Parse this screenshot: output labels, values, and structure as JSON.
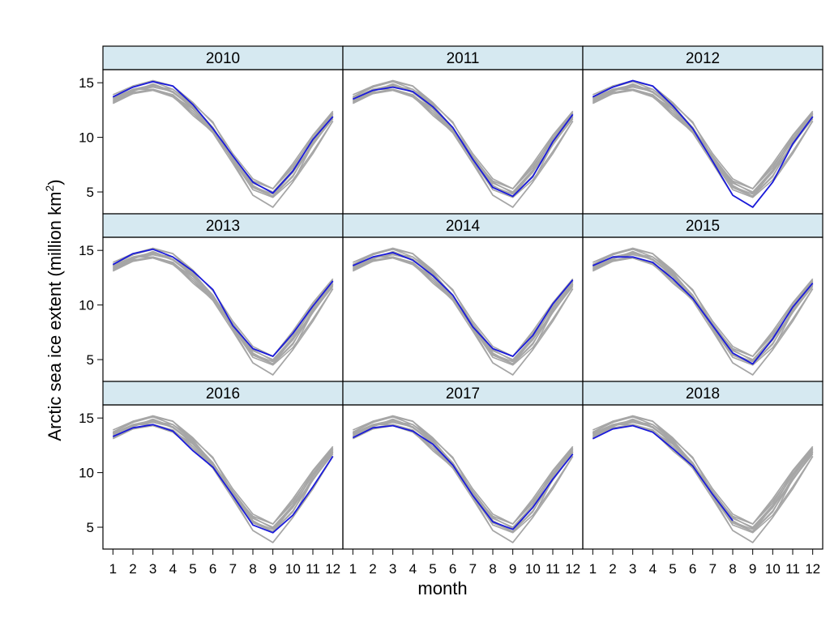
{
  "chart_data": {
    "type": "line",
    "layout": "3x3 facet grid",
    "xlabel": "month",
    "ylabel_text": "Arctic sea ice extent (million km",
    "ylabel_superscript": "2",
    "ylabel_close": ")",
    "ylim": [
      3,
      16.2
    ],
    "xlim": [
      0.5,
      12.5
    ],
    "y_ticks": [
      "15",
      "10",
      "5"
    ],
    "y_tick_values": [
      15,
      10,
      5
    ],
    "x_ticks": [
      "1",
      "2",
      "3",
      "4",
      "5",
      "6",
      "7",
      "8",
      "9",
      "10",
      "11",
      "12"
    ],
    "x": [
      1,
      2,
      3,
      4,
      5,
      6,
      7,
      8,
      9,
      10,
      11,
      12
    ],
    "grid": false,
    "colors": {
      "highlight": "#1a1adb",
      "background_series": "#a6a6a6",
      "strip_fill": "#d6e9f1",
      "frame": "#000000"
    },
    "series": [
      {
        "year": "2010",
        "values": [
          13.7,
          14.6,
          15.1,
          14.7,
          13.0,
          10.8,
          8.3,
          5.9,
          4.9,
          6.9,
          9.8,
          11.9
        ]
      },
      {
        "year": "2011",
        "values": [
          13.5,
          14.3,
          14.6,
          14.2,
          12.8,
          10.9,
          8.0,
          5.4,
          4.6,
          6.4,
          9.6,
          12.1
        ]
      },
      {
        "year": "2012",
        "values": [
          13.7,
          14.6,
          15.2,
          14.7,
          12.9,
          10.8,
          7.8,
          4.7,
          3.6,
          5.9,
          9.4,
          11.9
        ]
      },
      {
        "year": "2013",
        "values": [
          13.7,
          14.7,
          15.1,
          14.4,
          13.1,
          11.4,
          8.1,
          6.0,
          5.3,
          7.4,
          9.9,
          12.2
        ]
      },
      {
        "year": "2014",
        "values": [
          13.6,
          14.4,
          14.8,
          14.1,
          12.7,
          10.9,
          8.0,
          6.0,
          5.3,
          7.2,
          10.1,
          12.3
        ]
      },
      {
        "year": "2015",
        "values": [
          13.6,
          14.4,
          14.4,
          13.9,
          12.4,
          10.6,
          8.1,
          5.6,
          4.6,
          6.9,
          9.8,
          12.0
        ]
      },
      {
        "year": "2016",
        "values": [
          13.3,
          14.1,
          14.4,
          13.8,
          12.0,
          10.5,
          7.9,
          5.2,
          4.5,
          6.1,
          8.7,
          11.5
        ]
      },
      {
        "year": "2017",
        "values": [
          13.2,
          14.1,
          14.3,
          13.8,
          12.6,
          10.7,
          7.9,
          5.5,
          4.8,
          6.8,
          9.4,
          11.7
        ]
      },
      {
        "year": "2018",
        "values": [
          13.1,
          14.0,
          14.3,
          13.7,
          12.2,
          10.6,
          8.0,
          5.6,
          null,
          null,
          null,
          null
        ]
      }
    ],
    "reference_series": [
      [
        13.2,
        14.0,
        14.4,
        13.9,
        12.2,
        10.4,
        7.6,
        4.7,
        3.6,
        5.9,
        8.5,
        11.5
      ],
      [
        13.9,
        14.7,
        15.2,
        14.7,
        13.2,
        11.3,
        8.5,
        6.2,
        5.3,
        7.6,
        10.2,
        12.4
      ],
      [
        13.5,
        14.4,
        14.7,
        14.4,
        12.9,
        10.9,
        8.1,
        5.8,
        5.0,
        7.0,
        9.8,
        12.1
      ],
      [
        13.4,
        14.2,
        14.9,
        14.2,
        12.6,
        10.7,
        7.9,
        5.5,
        4.6,
        6.5,
        9.3,
        11.8
      ]
    ]
  }
}
